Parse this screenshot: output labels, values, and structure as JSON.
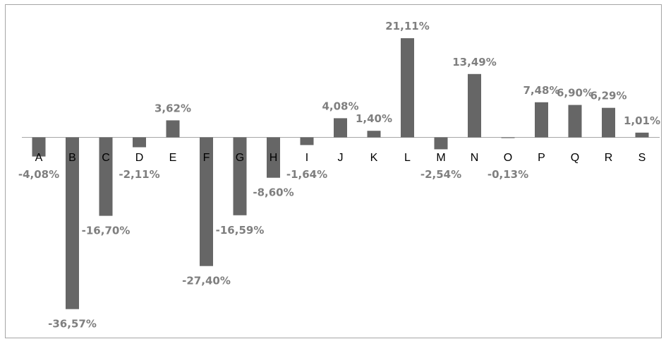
{
  "chart_data": {
    "type": "bar",
    "categories": [
      "A",
      "B",
      "C",
      "D",
      "E",
      "F",
      "G",
      "H",
      "I",
      "J",
      "K",
      "L",
      "M",
      "N",
      "O",
      "P",
      "Q",
      "R",
      "S"
    ],
    "values": [
      -4.08,
      -36.57,
      -16.7,
      -2.11,
      3.62,
      -27.4,
      -16.59,
      -8.6,
      -1.64,
      4.08,
      1.4,
      21.11,
      -2.54,
      13.49,
      -0.13,
      7.48,
      6.9,
      6.29,
      1.01
    ],
    "value_labels": [
      "-4,08%",
      "-36,57%",
      "-16,70%",
      "-2,11%",
      "3,62%",
      "-27,40%",
      "-16,59%",
      "-8,60%",
      "-1,64%",
      "4,08%",
      "1,40%",
      "21,11%",
      "-2,54%",
      "13,49%",
      "-0,13%",
      "7,48%",
      "6,90%",
      "6,29%",
      "1,01%"
    ],
    "title": "",
    "xlabel": "",
    "ylabel": "",
    "ylim": [
      -40,
      25
    ],
    "grid": false,
    "legend": "none",
    "colors": {
      "bar": "#666666",
      "label": "#7f7f7f",
      "axis": "#a6a6a6",
      "category": "#000000",
      "border": "#a6a6a6"
    }
  }
}
